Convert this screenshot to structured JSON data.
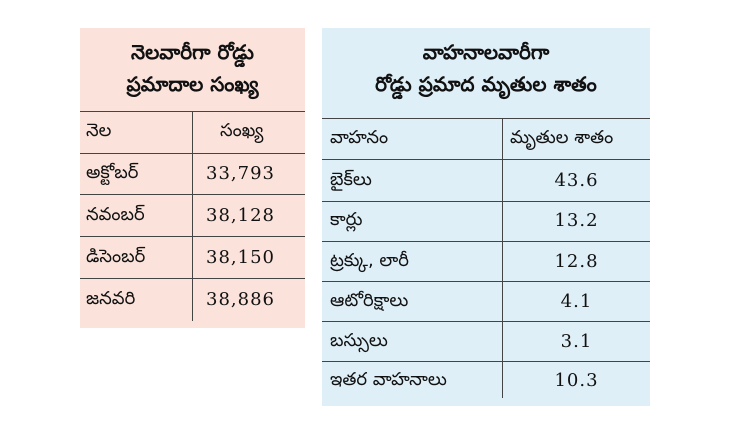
{
  "left_table": {
    "title_line1": "నెలవారీగా రోడ్డు",
    "title_line2": "ప్రమాదాల సంఖ్య",
    "headers": [
      "నెల",
      "సంఖ్య"
    ],
    "rows": [
      {
        "month": "అక్టోబర్",
        "count": "33,793"
      },
      {
        "month": "నవంబర్",
        "count": "38,128"
      },
      {
        "month": "డిసెంబర్",
        "count": "38,150"
      },
      {
        "month": "జనవరి",
        "count": "38,886"
      }
    ]
  },
  "right_table": {
    "title_line1": "వాహనాలవారీగా",
    "title_line2": "రోడ్డు ప్రమాద మృతుల శాతం",
    "headers": [
      "వాహనం",
      "మృతుల శాతం"
    ],
    "rows": [
      {
        "vehicle": "బైక్‌లు",
        "percent": "43.6"
      },
      {
        "vehicle": "కార్లు",
        "percent": "13.2"
      },
      {
        "vehicle": "ట్రక్కు, లారీ",
        "percent": "12.8"
      },
      {
        "vehicle": "ఆటోరిక్షాలు",
        "percent": "4.1"
      },
      {
        "vehicle": "బస్సులు",
        "percent": "3.1"
      },
      {
        "vehicle": "ఇతర వాహనాలు",
        "percent": "10.3"
      }
    ]
  },
  "colors": {
    "left_bg": "#fbe3dc",
    "right_bg": "#dfeff7",
    "rule": "#444444"
  }
}
